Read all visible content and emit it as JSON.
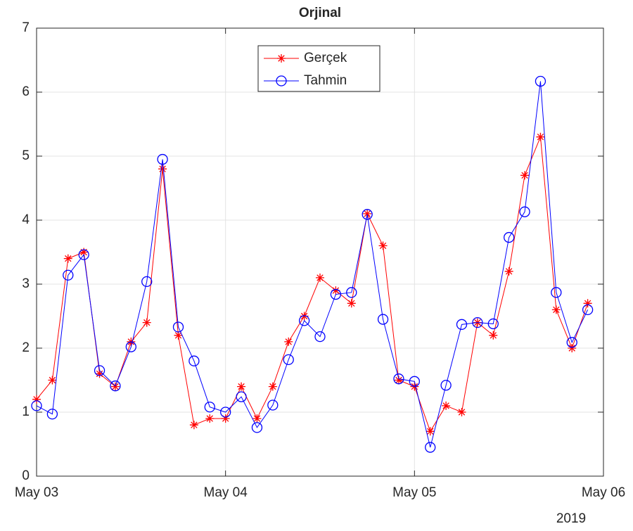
{
  "chart_data": {
    "type": "line",
    "title": "Orjinal",
    "x": [
      "2019-05-03T00:00",
      "2019-05-03T02:00",
      "2019-05-03T04:00",
      "2019-05-03T06:00",
      "2019-05-03T08:00",
      "2019-05-03T10:00",
      "2019-05-03T12:00",
      "2019-05-03T14:00",
      "2019-05-03T16:00",
      "2019-05-03T18:00",
      "2019-05-03T20:00",
      "2019-05-03T22:00",
      "2019-05-04T00:00",
      "2019-05-04T02:00",
      "2019-05-04T04:00",
      "2019-05-04T06:00",
      "2019-05-04T08:00",
      "2019-05-04T10:00",
      "2019-05-04T12:00",
      "2019-05-04T14:00",
      "2019-05-04T16:00",
      "2019-05-04T18:00",
      "2019-05-04T20:00",
      "2019-05-04T22:00",
      "2019-05-05T00:00",
      "2019-05-05T02:00",
      "2019-05-05T04:00",
      "2019-05-05T06:00",
      "2019-05-05T08:00",
      "2019-05-05T10:00",
      "2019-05-05T12:00",
      "2019-05-05T14:00",
      "2019-05-05T16:00",
      "2019-05-05T18:00",
      "2019-05-05T20:00",
      "2019-05-05T22:00"
    ],
    "series": [
      {
        "name": "Gerçek",
        "color": "#ff0000",
        "marker": "star",
        "values": [
          1.2,
          1.5,
          3.4,
          3.5,
          1.6,
          1.4,
          2.1,
          2.4,
          4.8,
          2.2,
          0.8,
          0.9,
          0.9,
          1.4,
          0.9,
          1.4,
          2.1,
          2.5,
          3.1,
          2.9,
          2.7,
          4.1,
          3.6,
          1.5,
          1.4,
          0.7,
          1.1,
          1.0,
          2.4,
          2.2,
          3.2,
          4.7,
          5.3,
          2.6,
          2.0,
          2.7
        ]
      },
      {
        "name": "Tahmin",
        "color": "#0000ff",
        "marker": "circle",
        "values": [
          1.1,
          0.97,
          3.14,
          3.46,
          1.65,
          1.41,
          2.02,
          3.04,
          4.95,
          2.33,
          1.8,
          1.08,
          1.0,
          1.24,
          0.76,
          1.11,
          1.82,
          2.43,
          2.18,
          2.84,
          2.87,
          4.09,
          2.45,
          1.52,
          1.48,
          0.45,
          1.42,
          2.37,
          2.4,
          2.38,
          3.73,
          4.13,
          6.17,
          2.87,
          2.09,
          2.6
        ]
      }
    ],
    "xlim": [
      "2019-05-03T00:00",
      "2019-05-06T00:00"
    ],
    "xticks": [
      {
        "value": "2019-05-03T00:00",
        "label": "May 03"
      },
      {
        "value": "2019-05-04T00:00",
        "label": "May 04"
      },
      {
        "value": "2019-05-05T00:00",
        "label": "May 05"
      },
      {
        "value": "2019-05-06T00:00",
        "label": "May 06"
      }
    ],
    "x_year_label": "2019",
    "ylim": [
      0,
      7
    ],
    "yticks": [
      0,
      1,
      2,
      3,
      4,
      5,
      6,
      7
    ],
    "grid": true,
    "legend": "top"
  }
}
